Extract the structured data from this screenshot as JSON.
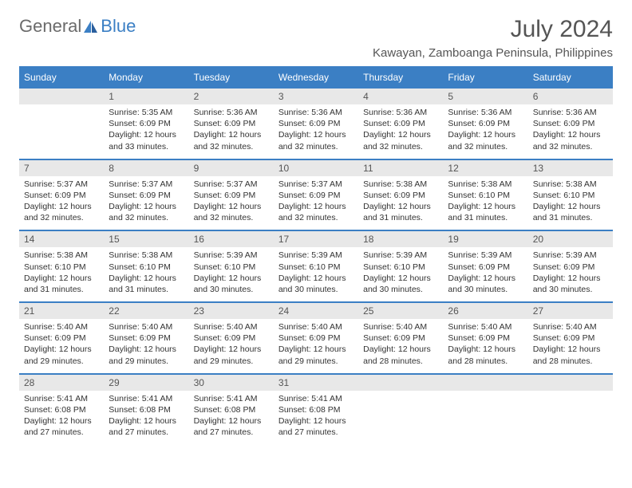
{
  "logo": {
    "part1": "General",
    "part2": "Blue"
  },
  "title": "July 2024",
  "location": "Kawayan, Zamboanga Peninsula, Philippines",
  "colors": {
    "header_bg": "#3b7fc4",
    "header_text": "#ffffff",
    "daynum_bg": "#e8e8e8",
    "daynum_text": "#555555",
    "detail_text": "#333333",
    "title_text": "#555555",
    "border": "#3b7fc4"
  },
  "day_names": [
    "Sunday",
    "Monday",
    "Tuesday",
    "Wednesday",
    "Thursday",
    "Friday",
    "Saturday"
  ],
  "weeks": [
    [
      null,
      {
        "n": "1",
        "sr": "5:35 AM",
        "ss": "6:09 PM",
        "dl": "12 hours and 33 minutes."
      },
      {
        "n": "2",
        "sr": "5:36 AM",
        "ss": "6:09 PM",
        "dl": "12 hours and 32 minutes."
      },
      {
        "n": "3",
        "sr": "5:36 AM",
        "ss": "6:09 PM",
        "dl": "12 hours and 32 minutes."
      },
      {
        "n": "4",
        "sr": "5:36 AM",
        "ss": "6:09 PM",
        "dl": "12 hours and 32 minutes."
      },
      {
        "n": "5",
        "sr": "5:36 AM",
        "ss": "6:09 PM",
        "dl": "12 hours and 32 minutes."
      },
      {
        "n": "6",
        "sr": "5:36 AM",
        "ss": "6:09 PM",
        "dl": "12 hours and 32 minutes."
      }
    ],
    [
      {
        "n": "7",
        "sr": "5:37 AM",
        "ss": "6:09 PM",
        "dl": "12 hours and 32 minutes."
      },
      {
        "n": "8",
        "sr": "5:37 AM",
        "ss": "6:09 PM",
        "dl": "12 hours and 32 minutes."
      },
      {
        "n": "9",
        "sr": "5:37 AM",
        "ss": "6:09 PM",
        "dl": "12 hours and 32 minutes."
      },
      {
        "n": "10",
        "sr": "5:37 AM",
        "ss": "6:09 PM",
        "dl": "12 hours and 32 minutes."
      },
      {
        "n": "11",
        "sr": "5:38 AM",
        "ss": "6:09 PM",
        "dl": "12 hours and 31 minutes."
      },
      {
        "n": "12",
        "sr": "5:38 AM",
        "ss": "6:10 PM",
        "dl": "12 hours and 31 minutes."
      },
      {
        "n": "13",
        "sr": "5:38 AM",
        "ss": "6:10 PM",
        "dl": "12 hours and 31 minutes."
      }
    ],
    [
      {
        "n": "14",
        "sr": "5:38 AM",
        "ss": "6:10 PM",
        "dl": "12 hours and 31 minutes."
      },
      {
        "n": "15",
        "sr": "5:38 AM",
        "ss": "6:10 PM",
        "dl": "12 hours and 31 minutes."
      },
      {
        "n": "16",
        "sr": "5:39 AM",
        "ss": "6:10 PM",
        "dl": "12 hours and 30 minutes."
      },
      {
        "n": "17",
        "sr": "5:39 AM",
        "ss": "6:10 PM",
        "dl": "12 hours and 30 minutes."
      },
      {
        "n": "18",
        "sr": "5:39 AM",
        "ss": "6:10 PM",
        "dl": "12 hours and 30 minutes."
      },
      {
        "n": "19",
        "sr": "5:39 AM",
        "ss": "6:09 PM",
        "dl": "12 hours and 30 minutes."
      },
      {
        "n": "20",
        "sr": "5:39 AM",
        "ss": "6:09 PM",
        "dl": "12 hours and 30 minutes."
      }
    ],
    [
      {
        "n": "21",
        "sr": "5:40 AM",
        "ss": "6:09 PM",
        "dl": "12 hours and 29 minutes."
      },
      {
        "n": "22",
        "sr": "5:40 AM",
        "ss": "6:09 PM",
        "dl": "12 hours and 29 minutes."
      },
      {
        "n": "23",
        "sr": "5:40 AM",
        "ss": "6:09 PM",
        "dl": "12 hours and 29 minutes."
      },
      {
        "n": "24",
        "sr": "5:40 AM",
        "ss": "6:09 PM",
        "dl": "12 hours and 29 minutes."
      },
      {
        "n": "25",
        "sr": "5:40 AM",
        "ss": "6:09 PM",
        "dl": "12 hours and 28 minutes."
      },
      {
        "n": "26",
        "sr": "5:40 AM",
        "ss": "6:09 PM",
        "dl": "12 hours and 28 minutes."
      },
      {
        "n": "27",
        "sr": "5:40 AM",
        "ss": "6:09 PM",
        "dl": "12 hours and 28 minutes."
      }
    ],
    [
      {
        "n": "28",
        "sr": "5:41 AM",
        "ss": "6:08 PM",
        "dl": "12 hours and 27 minutes."
      },
      {
        "n": "29",
        "sr": "5:41 AM",
        "ss": "6:08 PM",
        "dl": "12 hours and 27 minutes."
      },
      {
        "n": "30",
        "sr": "5:41 AM",
        "ss": "6:08 PM",
        "dl": "12 hours and 27 minutes."
      },
      {
        "n": "31",
        "sr": "5:41 AM",
        "ss": "6:08 PM",
        "dl": "12 hours and 27 minutes."
      },
      null,
      null,
      null
    ]
  ],
  "labels": {
    "sunrise": "Sunrise:",
    "sunset": "Sunset:",
    "daylight": "Daylight:"
  }
}
